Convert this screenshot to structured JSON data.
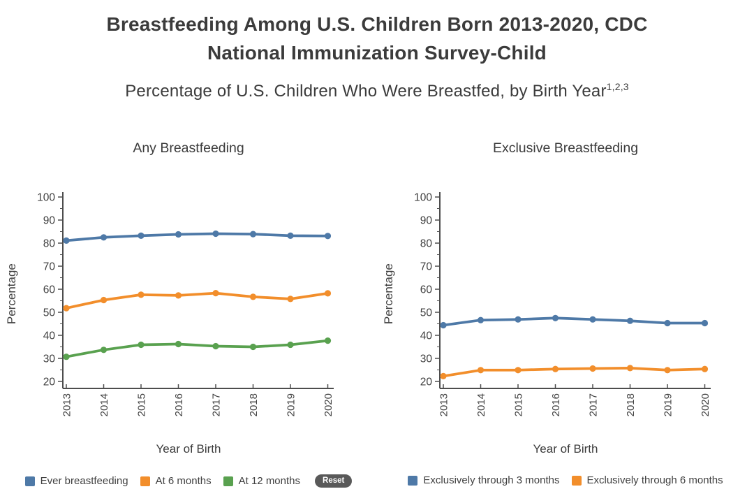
{
  "header": {
    "title_line1": "Breastfeeding Among U.S. Children Born 2013-2020, CDC",
    "title_line2": "National Immunization Survey-Child",
    "subtitle": "Percentage of U.S. Children Who Were Breastfed, by Birth Year",
    "subtitle_superscript": "1,2,3"
  },
  "colors": {
    "blue": "#4e79a7",
    "orange": "#f28e2b",
    "green": "#59a14f",
    "axis_line": "#4d4d4d",
    "tick_text": "#404040",
    "title_text": "#3b3b3b",
    "reset_bg": "#595959",
    "reset_text": "#ffffff"
  },
  "chart_data": [
    {
      "type": "line",
      "title": "Any Breastfeeding",
      "xlabel": "Year of Birth",
      "ylabel": "Percentage",
      "categories": [
        "2013",
        "2014",
        "2015",
        "2016",
        "2017",
        "2018",
        "2019",
        "2020"
      ],
      "ylim": [
        15,
        100
      ],
      "yticks": [
        20,
        30,
        40,
        50,
        60,
        70,
        80,
        90,
        100
      ],
      "grid": false,
      "legend_position": "bottom",
      "series": [
        {
          "name": "Ever breastfeeding",
          "color": "#4e79a7",
          "values": [
            81.1,
            82.5,
            83.2,
            83.8,
            84.1,
            83.9,
            83.2,
            83.1
          ]
        },
        {
          "name": "At 6 months",
          "color": "#f28e2b",
          "values": [
            51.8,
            55.3,
            57.6,
            57.3,
            58.3,
            56.7,
            55.8,
            58.2
          ]
        },
        {
          "name": "At 12 months",
          "color": "#59a14f",
          "values": [
            30.7,
            33.7,
            35.9,
            36.2,
            35.3,
            35.0,
            35.9,
            37.7
          ]
        }
      ],
      "reset_button": "Reset"
    },
    {
      "type": "line",
      "title": "Exclusive Breastfeeding",
      "xlabel": "Year of Birth",
      "ylabel": "Percentage",
      "categories": [
        "2013",
        "2014",
        "2015",
        "2016",
        "2017",
        "2018",
        "2019",
        "2020"
      ],
      "ylim": [
        15,
        100
      ],
      "yticks": [
        20,
        30,
        40,
        50,
        60,
        70,
        80,
        90,
        100
      ],
      "grid": false,
      "legend_position": "bottom",
      "series": [
        {
          "name": "Exclusively through 3 months",
          "color": "#4e79a7",
          "values": [
            44.4,
            46.6,
            46.9,
            47.5,
            46.9,
            46.3,
            45.3,
            45.3
          ]
        },
        {
          "name": "Exclusively through 6 months",
          "color": "#f28e2b",
          "values": [
            22.3,
            24.9,
            24.9,
            25.4,
            25.6,
            25.8,
            24.9,
            25.4
          ]
        }
      ]
    }
  ]
}
